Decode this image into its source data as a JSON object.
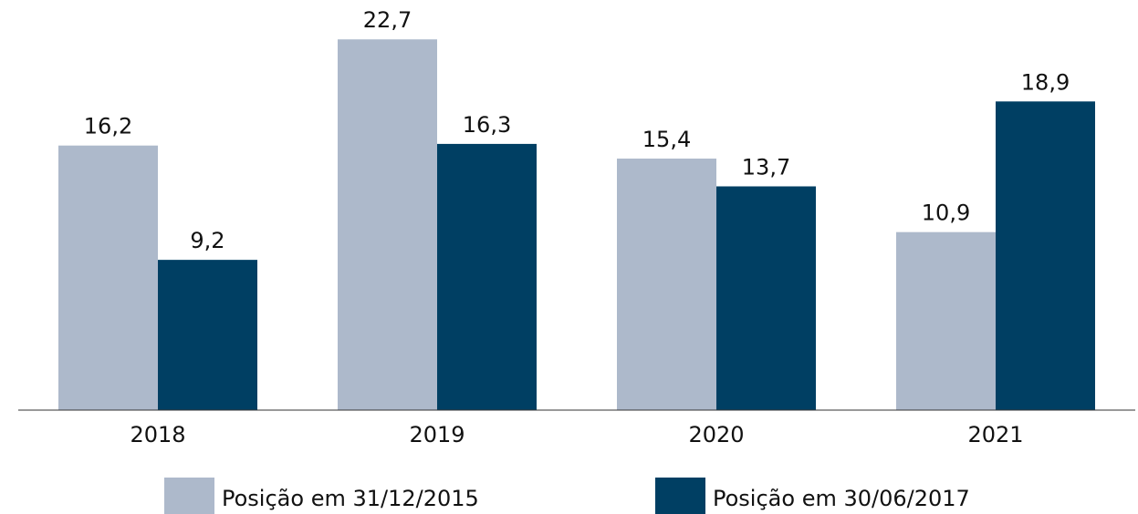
{
  "chart_data": {
    "type": "bar",
    "categories": [
      "2018",
      "2019",
      "2020",
      "2021"
    ],
    "series": [
      {
        "name": "Posição em 31/12/2015",
        "color": "#adb9cb",
        "values": [
          16.2,
          22.7,
          15.4,
          10.9
        ],
        "value_labels": [
          "16,2",
          "22,7",
          "15,4",
          "10,9"
        ]
      },
      {
        "name": "Posição em 30/06/2017",
        "color": "#003f63",
        "values": [
          9.2,
          16.3,
          13.7,
          18.9
        ],
        "value_labels": [
          "9,2",
          "16,3",
          "13,7",
          "18,9"
        ]
      }
    ],
    "ylim": [
      0,
      25
    ],
    "legend": "bottom"
  }
}
